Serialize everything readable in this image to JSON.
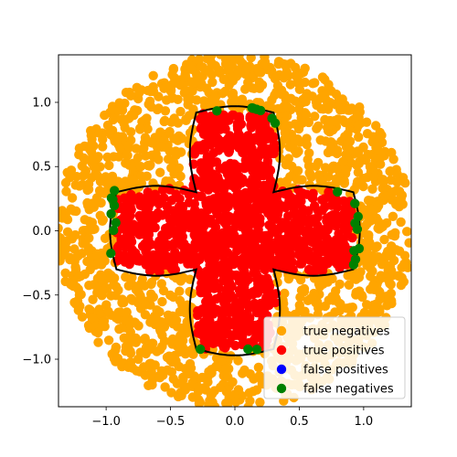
{
  "chart_data": {
    "type": "scatter",
    "title": "",
    "xlabel": "",
    "ylabel": "",
    "xlim": [
      -1.37,
      1.37
    ],
    "ylim": [
      -1.37,
      1.37
    ],
    "xticks": [
      -1.0,
      -0.5,
      0.0,
      0.5,
      1.0
    ],
    "yticks": [
      -1.0,
      -0.5,
      0.0,
      0.5,
      1.0
    ],
    "xtick_labels": [
      "−1.0",
      "−0.5",
      "0.0",
      "0.5",
      "1.0"
    ],
    "ytick_labels": [
      "−1.0",
      "−0.5",
      "0.0",
      "0.5",
      "1.0"
    ],
    "grid": false,
    "legend_position": "bottom-right",
    "series": [
      {
        "name": "true negatives",
        "color": "#ffa500",
        "region": "disk radius 1.35 outside cross shape",
        "approx_count": 1400
      },
      {
        "name": "true positives",
        "color": "#ff0000",
        "region": "inside cross/plus-shaped boundary",
        "approx_count": 700
      },
      {
        "name": "false positives",
        "color": "#0000ff",
        "region": "none visible",
        "approx_count": 0
      },
      {
        "name": "false negatives",
        "color": "#008000",
        "region": "along the decision boundary",
        "approx_count": 90
      }
    ],
    "boundary": {
      "color": "#000000",
      "shape": "plus/cross with rounded lobes",
      "arm_reach": 0.92,
      "arm_halfwidth": 0.27
    }
  }
}
